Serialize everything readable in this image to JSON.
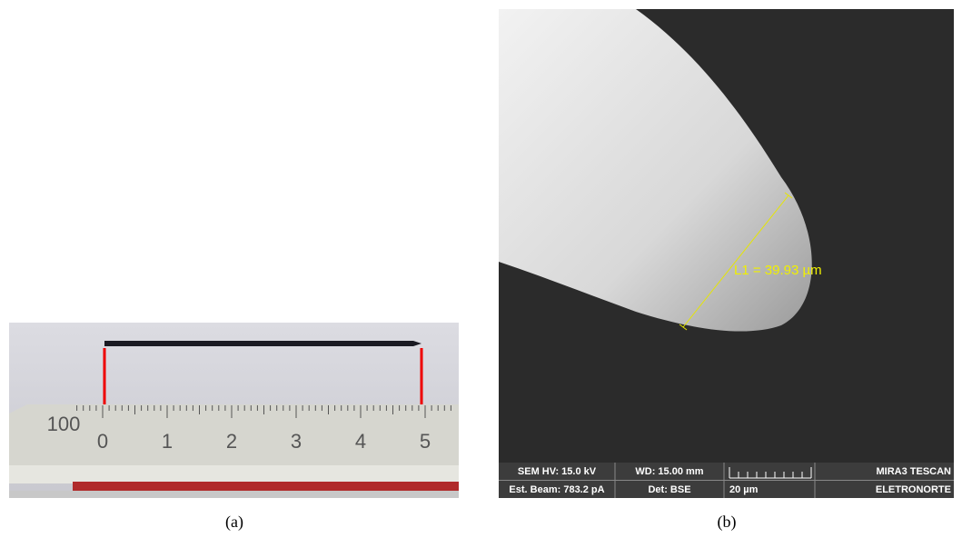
{
  "panels": [
    {
      "caption": "(a)",
      "ruler": {
        "scale_label": "100",
        "numbers": [
          "0",
          "1",
          "2",
          "3",
          "4",
          "5"
        ]
      }
    },
    {
      "caption": "(b)",
      "measurement": "L1 = 39.93 µm",
      "info_bar": {
        "row1": [
          "SEM HV: 15.0 kV",
          "WD: 15.00 mm",
          "MIRA3 TESCAN"
        ],
        "row2": [
          "Est. Beam: 783.2 pA",
          "Det: BSE",
          "20 µm",
          "ELETRONORTE"
        ]
      }
    }
  ]
}
